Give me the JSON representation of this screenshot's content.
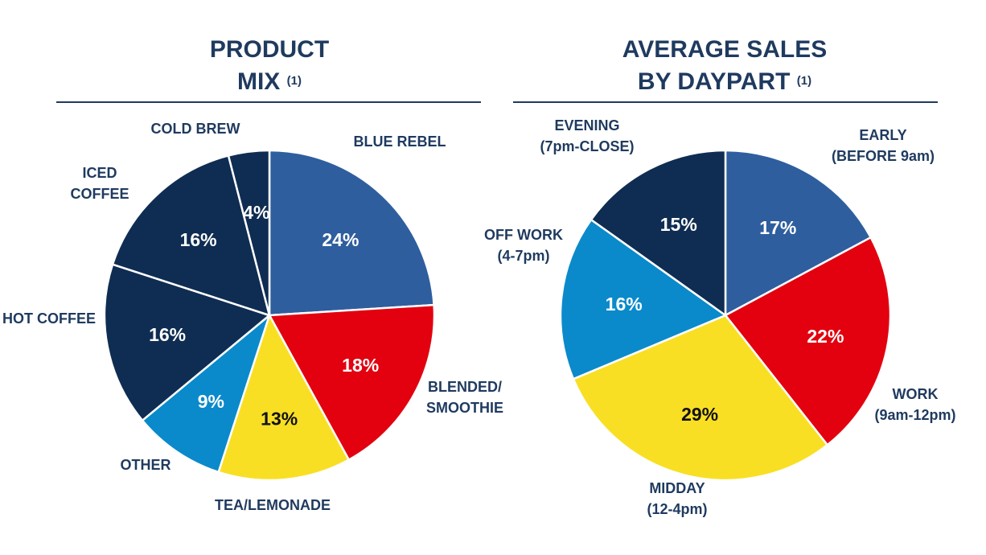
{
  "chart_data": [
    {
      "type": "pie",
      "title_line1": "PRODUCT",
      "title_line2": "MIX",
      "title_note": "(1)",
      "slices": [
        {
          "label_lines": [
            "BLUE REBEL"
          ],
          "value": 24,
          "value_label": "24%",
          "color": "#2E5E9E",
          "text_color": "#ffffff"
        },
        {
          "label_lines": [
            "BLENDED/",
            "SMOOTHIE"
          ],
          "value": 18,
          "value_label": "18%",
          "color": "#E3000F",
          "text_color": "#ffffff"
        },
        {
          "label_lines": [
            "TEA/LEMONADE"
          ],
          "value": 13,
          "value_label": "13%",
          "color": "#F9DF24",
          "text_color": "#111111"
        },
        {
          "label_lines": [
            "OTHER"
          ],
          "value": 9,
          "value_label": "9%",
          "color": "#0A8ACB",
          "text_color": "#ffffff"
        },
        {
          "label_lines": [
            "HOT COFFEE"
          ],
          "value": 16,
          "value_label": "16%",
          "color": "#0F2D52",
          "text_color": "#ffffff"
        },
        {
          "label_lines": [
            "ICED",
            "COFFEE"
          ],
          "value": 16,
          "value_label": "16%",
          "color": "#0F2D52",
          "text_color": "#ffffff"
        },
        {
          "label_lines": [
            "COLD BREW"
          ],
          "value": 4,
          "value_label": "4%",
          "color": "#0F2D52",
          "text_color": "#ffffff"
        }
      ]
    },
    {
      "type": "pie",
      "title_line1": "AVERAGE SALES",
      "title_line2": "BY DAYPART",
      "title_note": "(1)",
      "slices": [
        {
          "label_lines": [
            "EARLY",
            "(BEFORE 9am)"
          ],
          "value": 17,
          "value_label": "17%",
          "color": "#2E5E9E",
          "text_color": "#ffffff"
        },
        {
          "label_lines": [
            "WORK",
            "(9am-12pm)"
          ],
          "value": 22,
          "value_label": "22%",
          "color": "#E3000F",
          "text_color": "#ffffff"
        },
        {
          "label_lines": [
            "MIDDAY",
            "(12-4pm)"
          ],
          "value": 29,
          "value_label": "29%",
          "color": "#F9DF24",
          "text_color": "#111111"
        },
        {
          "label_lines": [
            "OFF WORK",
            "(4-7pm)"
          ],
          "value": 16,
          "value_label": "16%",
          "color": "#0A8ACB",
          "text_color": "#ffffff"
        },
        {
          "label_lines": [
            "EVENING",
            "(7pm-CLOSE)"
          ],
          "value": 15,
          "value_label": "15%",
          "color": "#0F2D52",
          "text_color": "#ffffff"
        }
      ]
    }
  ]
}
